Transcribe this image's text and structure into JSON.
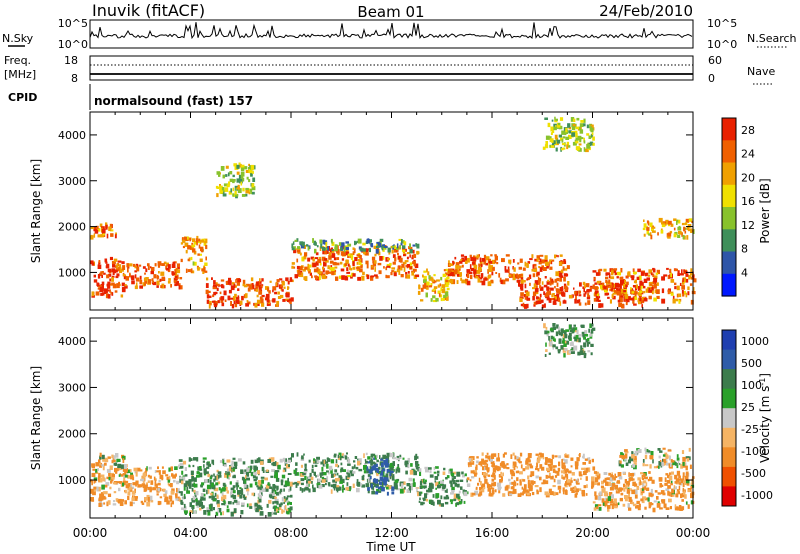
{
  "header": {
    "station": "Inuvik (fitACF)",
    "beam": "Beam 01",
    "date": "24/Feb/2010"
  },
  "top_panels": {
    "nsky_label": "N.Sky",
    "nsky_ticks": [
      "10^5",
      "10^0"
    ],
    "nsearch_label": "N.Search",
    "nsearch_ticks": [
      "10^5",
      "10^0"
    ],
    "freq_label": "Freq.",
    "freq_unit": "[MHz]",
    "freq_ticks": [
      "18",
      "8"
    ],
    "nave_label": "Nave",
    "nave_ticks": [
      "60",
      "0"
    ],
    "cpid_label": "CPID",
    "cpid_value": "normalsound (fast) 157"
  },
  "colors": {
    "power_scale": [
      "#0018ff",
      "#2e55a8",
      "#3f8f5a",
      "#88c22c",
      "#f0e000",
      "#f0a000",
      "#f06000",
      "#e82000"
    ],
    "velocity_scale": [
      "#e00000",
      "#f05000",
      "#f08c28",
      "#f5b464",
      "#c8c8c8",
      "#2aa02a",
      "#3c7c4c",
      "#2f5ca8",
      "#1f3fb0"
    ]
  },
  "chart_data": [
    {
      "type": "heatmap",
      "name": "power",
      "ylabel": "Slant Range [km]",
      "xlabel": "Time UT",
      "x_ticks": [
        "00:00",
        "04:00",
        "08:00",
        "12:00",
        "16:00",
        "20:00",
        "00:00"
      ],
      "y_ticks": [
        "1000",
        "2000",
        "3000",
        "4000"
      ],
      "ylim": [
        180,
        4500
      ],
      "colorbar": {
        "label": "Power [dB]",
        "ticks": [
          "4",
          "8",
          "12",
          "16",
          "20",
          "24",
          "28"
        ],
        "range": [
          0,
          30
        ]
      },
      "regions": [
        {
          "t": [
            0.0,
            1.3
          ],
          "r": [
            500,
            1350
          ],
          "v": 27
        },
        {
          "t": [
            0.0,
            1.0
          ],
          "r": [
            1800,
            2100
          ],
          "v": 24
        },
        {
          "t": [
            1.3,
            3.6
          ],
          "r": [
            700,
            1250
          ],
          "v": 25
        },
        {
          "t": [
            3.6,
            4.6
          ],
          "r": [
            1000,
            1800
          ],
          "v": 20
        },
        {
          "t": [
            4.6,
            8.0
          ],
          "r": [
            300,
            900
          ],
          "v": 26
        },
        {
          "t": [
            5.0,
            6.5
          ],
          "r": [
            2700,
            3400
          ],
          "v": 14
        },
        {
          "t": [
            8.0,
            13.0
          ],
          "r": [
            900,
            1600
          ],
          "v": 24
        },
        {
          "t": [
            8.0,
            13.0
          ],
          "r": [
            1500,
            1750
          ],
          "v": 10
        },
        {
          "t": [
            13.0,
            14.2
          ],
          "r": [
            400,
            1100
          ],
          "v": 20
        },
        {
          "t": [
            14.2,
            19.0
          ],
          "r": [
            800,
            1400
          ],
          "v": 25
        },
        {
          "t": [
            17.0,
            22.0
          ],
          "r": [
            300,
            800
          ],
          "v": 27
        },
        {
          "t": [
            18.0,
            20.0
          ],
          "r": [
            3700,
            4400
          ],
          "v": 14
        },
        {
          "t": [
            20.0,
            24.0
          ],
          "r": [
            400,
            1100
          ],
          "v": 24
        },
        {
          "t": [
            22.0,
            24.0
          ],
          "r": [
            1800,
            2200
          ],
          "v": 20
        }
      ]
    },
    {
      "type": "heatmap",
      "name": "velocity",
      "ylabel": "Slant Range [km]",
      "xlabel": "Time UT",
      "x_ticks": [
        "00:00",
        "04:00",
        "08:00",
        "12:00",
        "16:00",
        "20:00",
        "00:00"
      ],
      "y_ticks": [
        "1000",
        "2000",
        "3000",
        "4000"
      ],
      "ylim": [
        180,
        4500
      ],
      "colorbar": {
        "label": "Velocity [m s^-1]",
        "ticks": [
          "1000",
          "500",
          "100",
          "25",
          "-25",
          "-100",
          "-500",
          "-1000"
        ],
        "range": [
          -1000,
          1000
        ]
      },
      "regions": [
        {
          "t": [
            0.0,
            3.5
          ],
          "r": [
            500,
            1300
          ],
          "v": -150
        },
        {
          "t": [
            0.0,
            1.5
          ],
          "r": [
            1300,
            1600
          ],
          "v": -5
        },
        {
          "t": [
            3.5,
            8.0
          ],
          "r": [
            300,
            1500
          ],
          "v": 120
        },
        {
          "t": [
            8.0,
            13.0
          ],
          "r": [
            800,
            1600
          ],
          "v": 150
        },
        {
          "t": [
            11.0,
            12.0
          ],
          "r": [
            700,
            1500
          ],
          "v": 600
        },
        {
          "t": [
            13.0,
            15.0
          ],
          "r": [
            500,
            1300
          ],
          "v": 120
        },
        {
          "t": [
            15.0,
            20.0
          ],
          "r": [
            700,
            1600
          ],
          "v": -200
        },
        {
          "t": [
            18.0,
            20.0
          ],
          "r": [
            3700,
            4400
          ],
          "v": 100
        },
        {
          "t": [
            20.0,
            24.0
          ],
          "r": [
            400,
            1200
          ],
          "v": -150
        },
        {
          "t": [
            21.0,
            24.0
          ],
          "r": [
            1300,
            1700
          ],
          "v": -5
        }
      ]
    }
  ]
}
